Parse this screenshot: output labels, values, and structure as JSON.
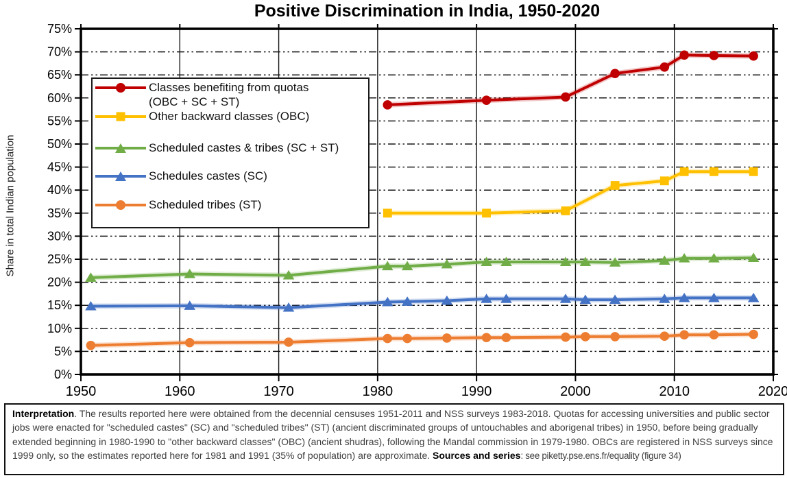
{
  "chart_data": {
    "type": "line",
    "title": "Positive Discrimination in India, 1950-2020",
    "xlabel": "",
    "ylabel": "Share in total Indian population",
    "xlim": [
      1950,
      2020
    ],
    "ylim": [
      0,
      75
    ],
    "x_ticks": [
      1950,
      1960,
      1970,
      1980,
      1990,
      2000,
      2010,
      2020
    ],
    "y_ticks": [
      0,
      5,
      10,
      15,
      20,
      25,
      30,
      35,
      40,
      45,
      50,
      55,
      60,
      65,
      70,
      75
    ],
    "y_tick_suffix": "%",
    "grid": "horizontal dash-dot-dot, vertical solid",
    "legend_position": "top-left inside plot",
    "series": [
      {
        "name": "quota-classes-total",
        "label": "Classes benefiting from quotas\n(OBC + SC + ST)",
        "color": "#c00000",
        "marker": "circle",
        "x": [
          1981,
          1991,
          1999,
          2004,
          2009,
          2011,
          2014,
          2018
        ],
        "values": [
          58.5,
          59.5,
          60.2,
          65.3,
          66.7,
          69.3,
          69.2,
          69.1
        ]
      },
      {
        "name": "obc",
        "label": "Other backward classes (OBC)",
        "color": "#ffc000",
        "marker": "square",
        "x": [
          1981,
          1991,
          1999,
          2004,
          2009,
          2011,
          2014,
          2018
        ],
        "values": [
          35.0,
          35.0,
          35.5,
          41.0,
          42.0,
          44.0,
          44.0,
          44.0
        ]
      },
      {
        "name": "sc-st",
        "label": "Scheduled castes & tribes (SC + ST)",
        "color": "#70ad47",
        "marker": "triangle",
        "x": [
          1951,
          1961,
          1971,
          1981,
          1983,
          1987,
          1991,
          1993,
          1999,
          2001,
          2004,
          2009,
          2011,
          2014,
          2018
        ],
        "values": [
          21.0,
          21.8,
          21.5,
          23.5,
          23.5,
          23.9,
          24.4,
          24.4,
          24.4,
          24.4,
          24.3,
          24.7,
          25.2,
          25.2,
          25.3
        ]
      },
      {
        "name": "sc",
        "label": "Schedules castes (SC)",
        "color": "#4472c4",
        "marker": "triangle",
        "x": [
          1951,
          1961,
          1971,
          1981,
          1983,
          1987,
          1991,
          1993,
          1999,
          2001,
          2004,
          2009,
          2011,
          2014,
          2018
        ],
        "values": [
          14.8,
          14.9,
          14.5,
          15.7,
          15.8,
          16.0,
          16.4,
          16.4,
          16.4,
          16.2,
          16.2,
          16.4,
          16.6,
          16.6,
          16.6
        ]
      },
      {
        "name": "st",
        "label": "Scheduled tribes (ST)",
        "color": "#ed7d31",
        "marker": "circle",
        "x": [
          1951,
          1961,
          1971,
          1981,
          1983,
          1987,
          1991,
          1993,
          1999,
          2001,
          2004,
          2009,
          2011,
          2014,
          2018
        ],
        "values": [
          6.3,
          6.9,
          7.0,
          7.8,
          7.8,
          7.9,
          8.0,
          8.0,
          8.1,
          8.2,
          8.2,
          8.3,
          8.6,
          8.6,
          8.7
        ]
      }
    ]
  },
  "footnote": {
    "interpretation_label": "Interpretation",
    "interpretation_text": ". The results reported here were obtained from the decennial censuses 1951-2011 and NSS surveys 1983-2018. Quotas for accessing universities and public sector jobs were enacted for \"scheduled castes\" (SC) and \"scheduled tribes\" (ST) (ancient discriminated groups of untouchables and aborigenal tribes) in 1950, before being gradually extended beginning in 1980-1990 to \"other backward classes\" (OBC) (ancient shudras), following the Mandal commission in 1979-1980. OBCs are registered in NSS surveys since 1999 only, so the estimates reported here for 1981 and 1991 (35% of population) are approximate. ",
    "sources_label": "Sources and series",
    "sources_text": ": see piketty.pse.ens.fr/equality (figure 34)"
  }
}
